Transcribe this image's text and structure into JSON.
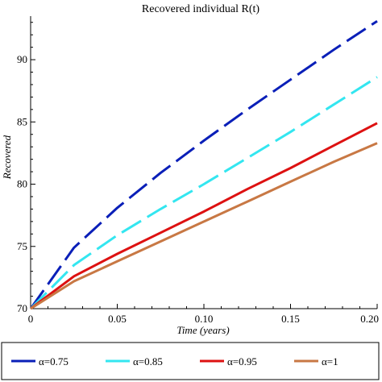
{
  "chart_data": {
    "type": "line",
    "title": "Recovered individual R(t)",
    "xlabel": "Time (years)",
    "ylabel": "Recovered",
    "xlim": [
      0,
      0.2
    ],
    "ylim": [
      70,
      93.5
    ],
    "x_ticks": [
      0,
      0.05,
      0.1,
      0.15,
      0.2
    ],
    "x_tick_labels": [
      "0",
      "0.05",
      "0.10",
      "0.15",
      "0.20"
    ],
    "y_ticks": [
      75,
      80,
      85,
      90
    ],
    "y_tick_labels": [
      "75",
      "80",
      "85",
      "90"
    ],
    "grid": false,
    "legend_position": "bottom",
    "x": [
      0,
      0.025,
      0.05,
      0.075,
      0.1,
      0.125,
      0.15,
      0.175,
      0.2
    ],
    "series": [
      {
        "name": "α=0.75",
        "color": "#0a1fb8",
        "style": "dash",
        "values": [
          70.0,
          74.9,
          78.1,
          80.9,
          83.5,
          86.0,
          88.4,
          90.8,
          93.1
        ]
      },
      {
        "name": "α=0.85",
        "color": "#33e6f0",
        "style": "dash",
        "values": [
          70.0,
          73.5,
          75.9,
          78.0,
          80.0,
          82.1,
          84.2,
          86.4,
          88.6
        ]
      },
      {
        "name": "α=0.95",
        "color": "#dd1111",
        "style": "solid",
        "values": [
          70.0,
          72.6,
          74.4,
          76.1,
          77.8,
          79.6,
          81.3,
          83.1,
          84.9
        ]
      },
      {
        "name": "α=1",
        "color": "#c87844",
        "style": "solid",
        "values": [
          70.0,
          72.2,
          73.8,
          75.4,
          77.0,
          78.6,
          80.2,
          81.8,
          83.3
        ]
      }
    ]
  }
}
